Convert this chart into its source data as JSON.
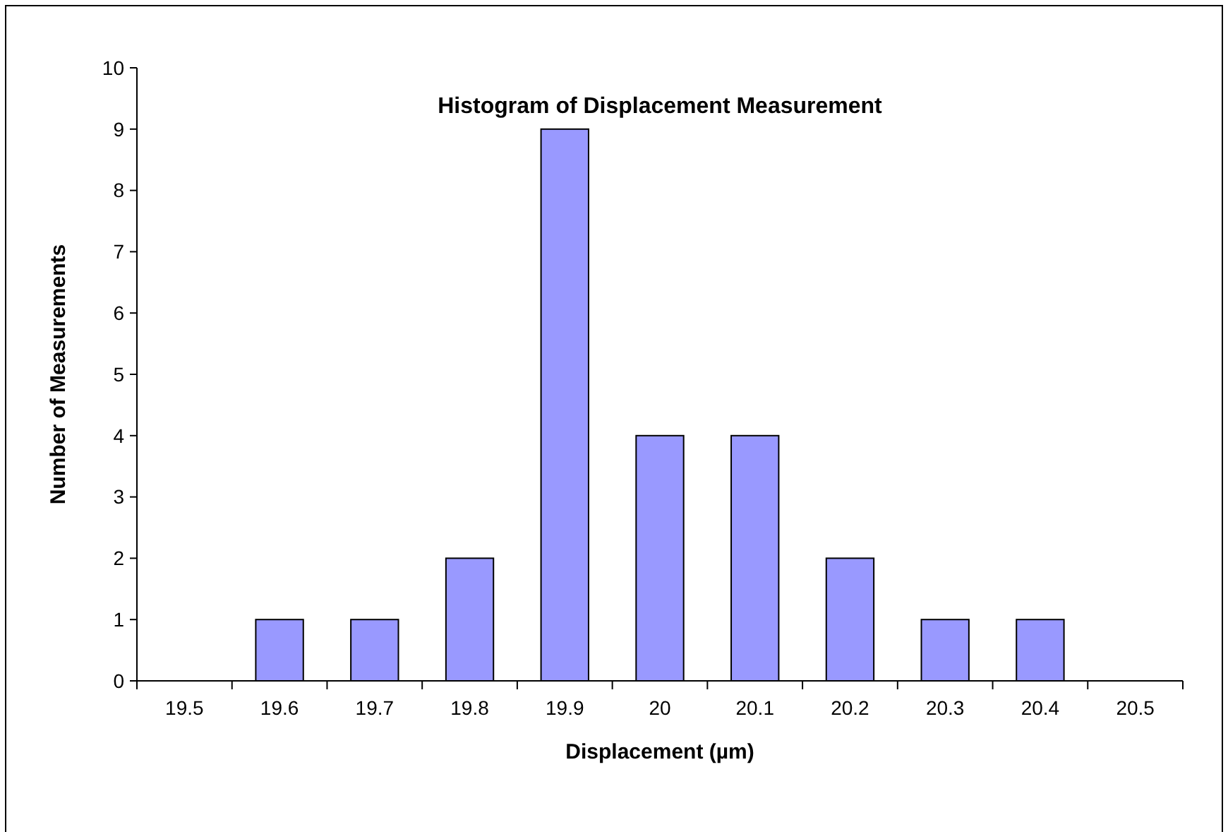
{
  "chart_data": {
    "type": "bar",
    "title": "Histogram of Displacement Measurement",
    "xlabel": "Displacement (µm)",
    "ylabel": "Number of Measurements",
    "categories": [
      "19.5",
      "19.6",
      "19.7",
      "19.8",
      "19.9",
      "20",
      "20.1",
      "20.2",
      "20.3",
      "20.4",
      "20.5"
    ],
    "values": [
      0,
      1,
      1,
      2,
      9,
      4,
      4,
      2,
      1,
      1,
      0
    ],
    "color": "#9999ff",
    "ylim": [
      0,
      10
    ],
    "yticks": [
      0,
      1,
      2,
      3,
      4,
      5,
      6,
      7,
      8,
      9,
      10
    ],
    "grid": false
  }
}
